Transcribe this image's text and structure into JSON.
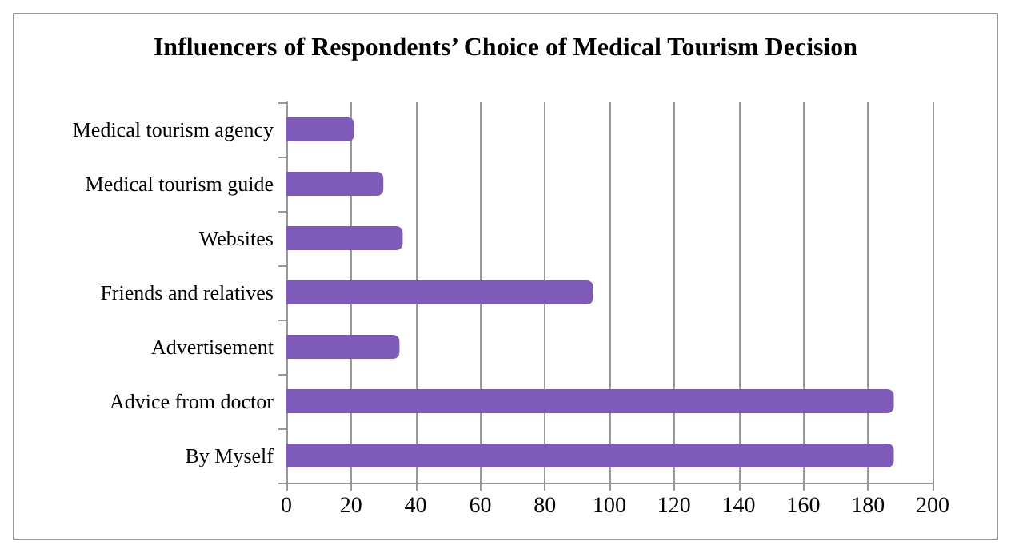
{
  "chart_data": {
    "type": "bar",
    "orientation": "horizontal",
    "title": "Influencers of Respondents’ Choice of Medical Tourism Decision",
    "categories": [
      "Medical tourism agency",
      "Medical tourism guide",
      "Websites",
      "Friends and relatives",
      "Advertisement",
      "Advice from doctor",
      "By Myself"
    ],
    "values": [
      21,
      30,
      36,
      95,
      35,
      188,
      188
    ],
    "color": "#7e5bb8",
    "xlim": [
      0,
      200
    ],
    "xticks": [
      0,
      20,
      40,
      60,
      80,
      100,
      120,
      140,
      160,
      180,
      200
    ],
    "grid": "x"
  }
}
